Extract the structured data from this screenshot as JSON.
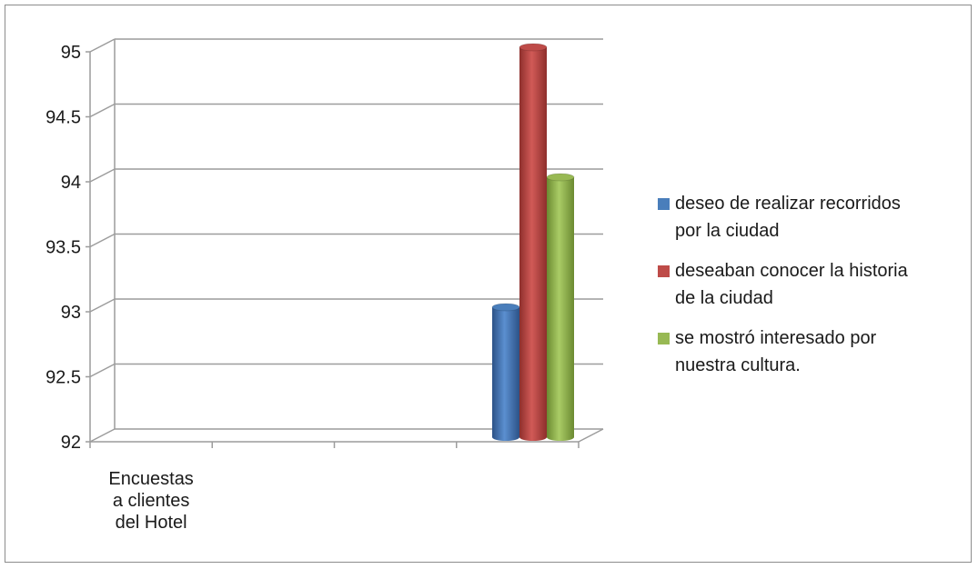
{
  "chart_data": {
    "type": "bar",
    "style": "3d-cylinder",
    "categories": [
      "Encuestas a clientes del Hotel"
    ],
    "category_lines": [
      "Encuestas",
      "a clientes",
      "del Hotel"
    ],
    "series": [
      {
        "name": "deseo de realizar recorridos por la ciudad",
        "lines": [
          "deseo de realizar recorridos",
          "por la ciudad"
        ],
        "values": [
          93
        ],
        "color": "#4a7ebb"
      },
      {
        "name": "deseaban conocer la historia de la ciudad",
        "lines": [
          "deseaban conocer la historia",
          "de la ciudad"
        ],
        "values": [
          95
        ],
        "color": "#be4b48"
      },
      {
        "name": "se mostró interesado por nuestra cultura.",
        "lines": [
          "se mostró interesado por",
          "nuestra cultura."
        ],
        "values": [
          94
        ],
        "color": "#98b954"
      }
    ],
    "y_ticks": [
      "92",
      "92.5",
      "93",
      "93.5",
      "94",
      "94.5",
      "95"
    ],
    "ylim": [
      92,
      95
    ],
    "grid": true,
    "legend_position": "right"
  }
}
